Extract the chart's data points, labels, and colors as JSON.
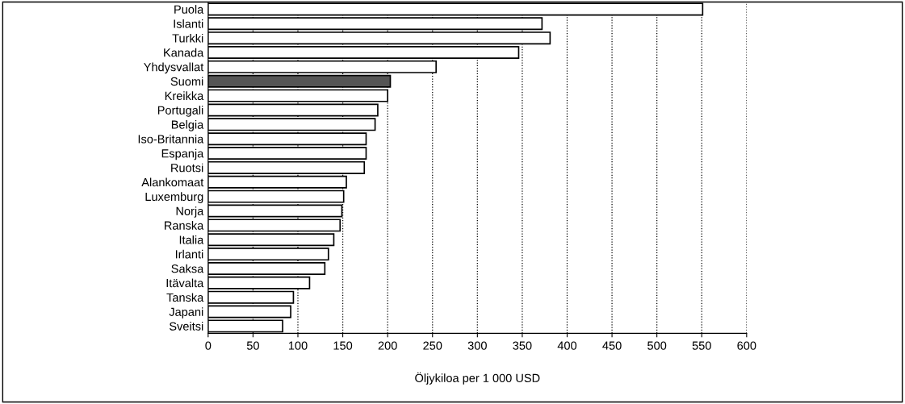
{
  "chart_data": {
    "type": "bar",
    "orientation": "horizontal",
    "xlabel": "Öljykiloa per 1 000 USD",
    "categories": [
      "Puola",
      "Islanti",
      "Turkki",
      "Kanada",
      "Yhdysvallat",
      "Suomi",
      "Kreikka",
      "Portugali",
      "Belgia",
      "Iso-Britannia",
      "Espanja",
      "Ruotsi",
      "Alankomaat",
      "Luxemburg",
      "Norja",
      "Ranska",
      "Italia",
      "Irlanti",
      "Saksa",
      "Itävalta",
      "Tanska",
      "Japani",
      "Sveitsi"
    ],
    "values": [
      551,
      372,
      381,
      346,
      254,
      203,
      200,
      189,
      186,
      176,
      176,
      174,
      154,
      151,
      149,
      147,
      140,
      134,
      130,
      113,
      95,
      92,
      83
    ],
    "colors": [
      "#ffffff",
      "#ffffff",
      "#ffffff",
      "#ffffff",
      "#ffffff",
      "#555555",
      "#ffffff",
      "#ffffff",
      "#ffffff",
      "#ffffff",
      "#ffffff",
      "#ffffff",
      "#ffffff",
      "#ffffff",
      "#ffffff",
      "#ffffff",
      "#ffffff",
      "#ffffff",
      "#ffffff",
      "#ffffff",
      "#ffffff",
      "#ffffff",
      "#ffffff"
    ],
    "xlim": [
      0,
      600
    ],
    "xticks": [
      0,
      50,
      100,
      150,
      200,
      250,
      300,
      350,
      400,
      450,
      500,
      550,
      600
    ],
    "grid": "x"
  }
}
